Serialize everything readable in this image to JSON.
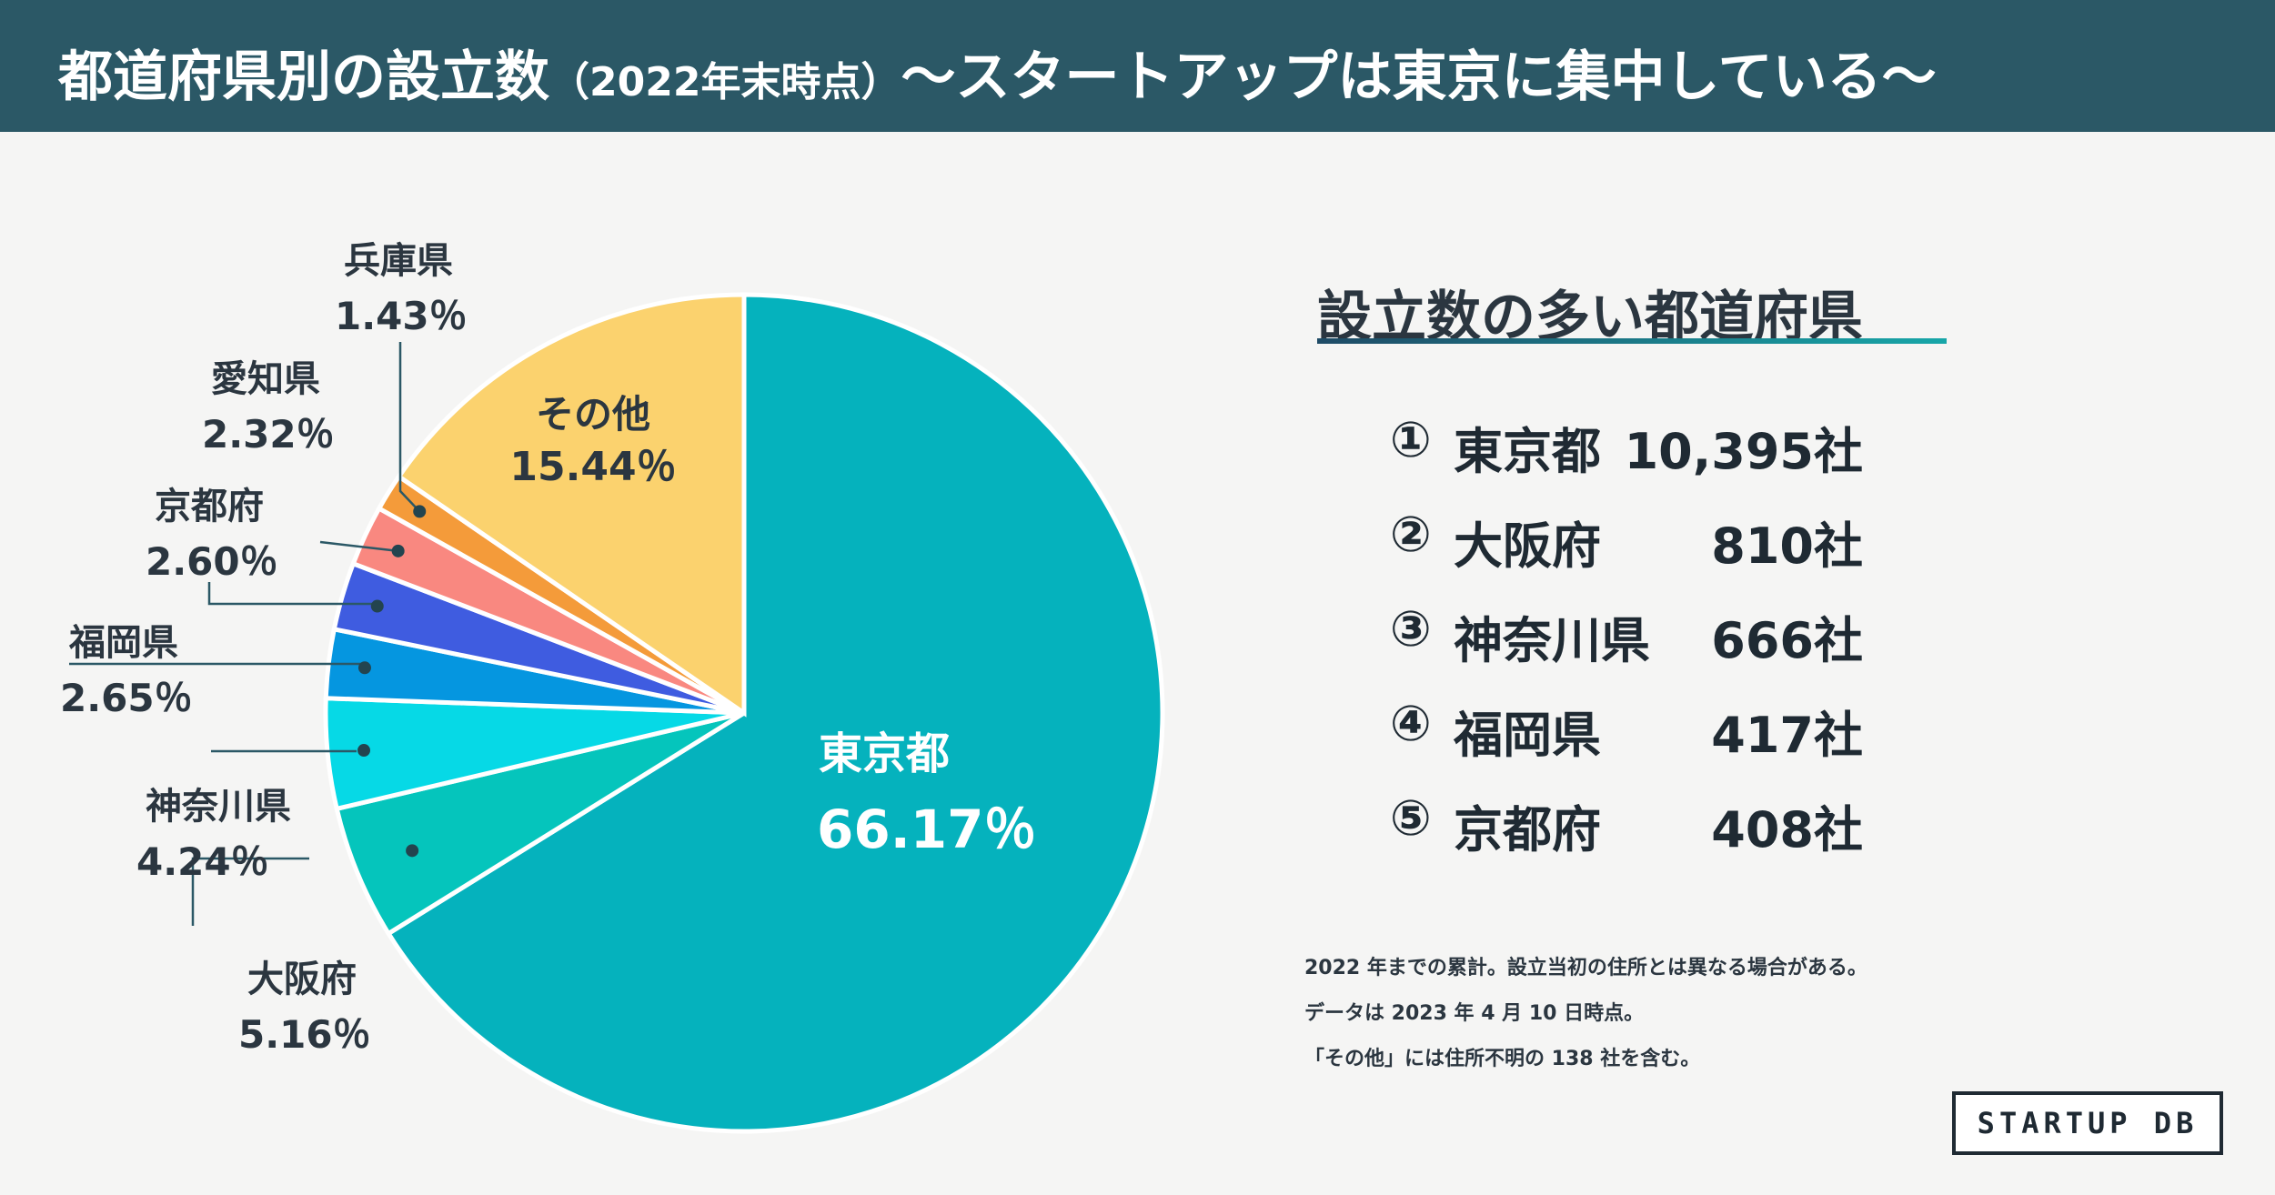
{
  "header": {
    "title_main": "都道府県別の設立数",
    "title_paren": "（2022年末時点）",
    "title_sub": "〜スタートアップは東京に集中している〜"
  },
  "chart_data": {
    "type": "pie",
    "title": "都道府県別の設立数（2022年末時点）",
    "start_angle_deg": 0,
    "direction": "clockwise",
    "slices": [
      {
        "name": "東京都",
        "value": 66.17,
        "label": "66.17％",
        "color": "#05b2bd"
      },
      {
        "name": "大阪府",
        "value": 5.16,
        "label": "5.16％",
        "color": "#05c5bc"
      },
      {
        "name": "神奈川県",
        "value": 4.24,
        "label": "4.24％",
        "color": "#06d9e6"
      },
      {
        "name": "福岡県",
        "value": 2.65,
        "label": "2.65％",
        "color": "#0596e0"
      },
      {
        "name": "京都府",
        "value": 2.6,
        "label": "2.60％",
        "color": "#3f5ce0"
      },
      {
        "name": "愛知県",
        "value": 2.32,
        "label": "2.32％",
        "color": "#f98880"
      },
      {
        "name": "兵庫県",
        "value": 1.43,
        "label": "1.43％",
        "color": "#f49b3a"
      },
      {
        "name": "その他",
        "value": 15.44,
        "label": "15.44％",
        "color": "#fbd26e"
      }
    ]
  },
  "ranking": {
    "title": "設立数の多い都道府県",
    "items": [
      {
        "mark": "①",
        "name": "東京都",
        "count": "10,395社"
      },
      {
        "mark": "②",
        "name": "大阪府",
        "count": "810社"
      },
      {
        "mark": "③",
        "name": "神奈川県",
        "count": "666社"
      },
      {
        "mark": "④",
        "name": "福岡県",
        "count": "417社"
      },
      {
        "mark": "⑤",
        "name": "京都府",
        "count": "408社"
      }
    ]
  },
  "notes": [
    "2022 年までの累計。設立当初の住所とは異なる場合がある。",
    "データは 2023 年 4 月 10 日時点。",
    "「その他」には住所不明の 138 社を含む。"
  ],
  "logo": {
    "text": "STARTUP DB"
  },
  "colors": {
    "header_bg": "#2b5866",
    "page_bg": "#f5f5f4"
  }
}
